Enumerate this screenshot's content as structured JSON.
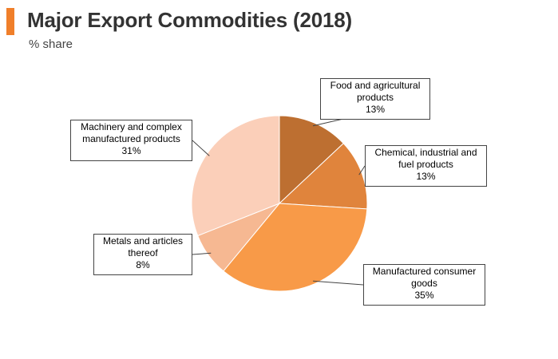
{
  "header": {
    "title": "Major Export Commodities (2018)",
    "subtitle": "% share",
    "accent_color": "#f07f2a"
  },
  "chart_data": {
    "type": "pie",
    "title": "Major Export Commodities (2018)",
    "subtitle": "% share",
    "start_angle_deg": 0,
    "direction": "clockwise",
    "slices": [
      {
        "label_lines": [
          "Food and agricultural",
          "products"
        ],
        "percent_label": "13%",
        "value": 13,
        "color": "#bd6f31"
      },
      {
        "label_lines": [
          "Chemical, industrial and",
          "fuel products"
        ],
        "percent_label": "13%",
        "value": 13,
        "color": "#e0843c"
      },
      {
        "label_lines": [
          "Manufactured consumer",
          "goods"
        ],
        "percent_label": "35%",
        "value": 35,
        "color": "#f89a48"
      },
      {
        "label_lines": [
          "Metals and articles",
          "thereof"
        ],
        "percent_label": "8%",
        "value": 8,
        "color": "#f6b892"
      },
      {
        "label_lines": [
          "Machinery and complex",
          "manufactured products"
        ],
        "percent_label": "31%",
        "value": 31,
        "color": "#fbcfb9"
      }
    ]
  }
}
